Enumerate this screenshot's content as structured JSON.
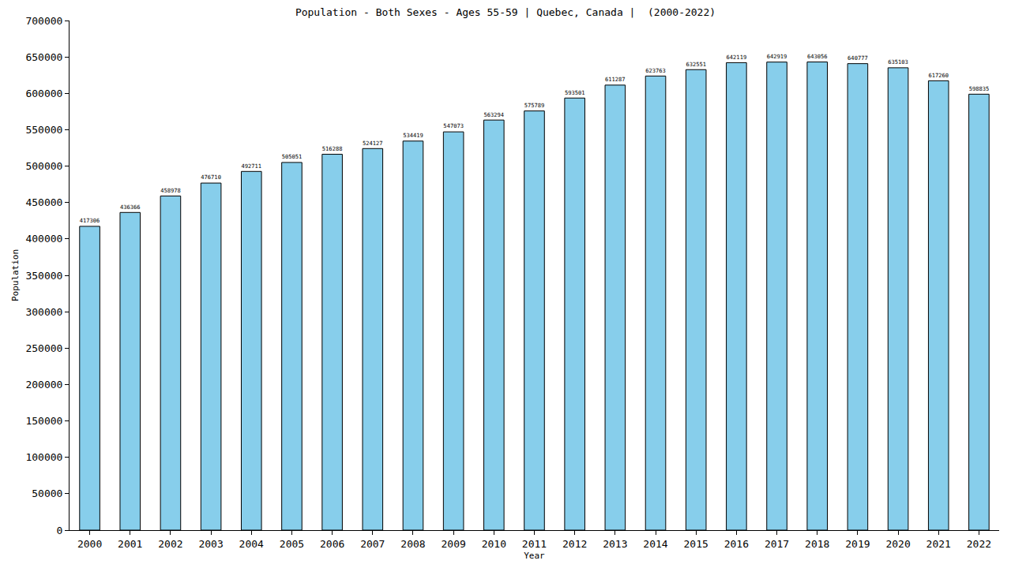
{
  "chart_data": {
    "type": "bar",
    "title": "Population - Both Sexes - Ages 55-59 | Quebec, Canada |  (2000-2022)",
    "x_label": "Year",
    "y_label": "Population",
    "categories": [
      "2000",
      "2001",
      "2002",
      "2003",
      "2004",
      "2005",
      "2006",
      "2007",
      "2008",
      "2009",
      "2010",
      "2011",
      "2012",
      "2013",
      "2014",
      "2015",
      "2016",
      "2017",
      "2018",
      "2019",
      "2020",
      "2021",
      "2022"
    ],
    "values": [
      417306,
      436366,
      458978,
      476710,
      492711,
      505051,
      516288,
      524127,
      534419,
      547073,
      563294,
      575789,
      593501,
      611287,
      623763,
      632551,
      642119,
      642919,
      643056,
      640777,
      635103,
      617260,
      598835
    ],
    "color": "#87ceeb",
    "ylim": [
      0,
      700000
    ],
    "yticks": [
      0,
      50000,
      100000,
      150000,
      200000,
      250000,
      300000,
      350000,
      400000,
      450000,
      500000,
      550000,
      600000,
      650000,
      700000
    ],
    "grid": false,
    "data_labels": true
  }
}
